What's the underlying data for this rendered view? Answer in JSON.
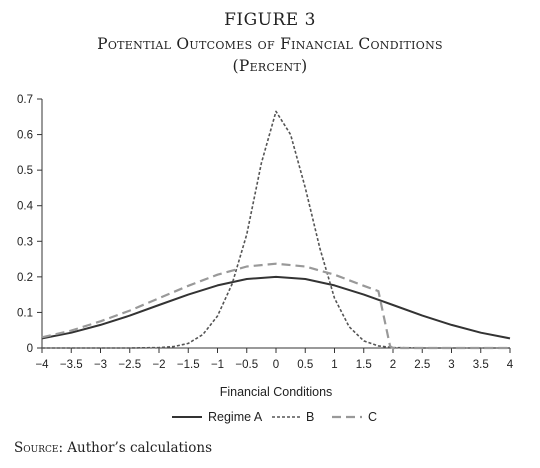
{
  "figure": {
    "label": "FIGURE 3",
    "title": "Potential Outcomes of Financial Conditions",
    "subtitle": "(Percent)"
  },
  "source": {
    "prefix": "Source:",
    "text": "Author’s calculations"
  },
  "chart_data": {
    "type": "line",
    "xlabel": "Financial Conditions",
    "ylabel": "",
    "xlim": [
      -4,
      4
    ],
    "ylim": [
      0,
      0.7
    ],
    "x_ticks": [
      "−4",
      "−3.5",
      "−3",
      "−2.5",
      "−2",
      "−1.5",
      "−1",
      "−0.5",
      "0",
      "0.5",
      "1",
      "1.5",
      "2",
      "2.5",
      "3",
      "3.5",
      "4"
    ],
    "x_tick_values": [
      -4,
      -3.5,
      -3,
      -2.5,
      -2,
      -1.5,
      -1,
      -0.5,
      0,
      0.5,
      1,
      1.5,
      2,
      2.5,
      3,
      3.5,
      4
    ],
    "y_ticks": [
      "0",
      "0.1",
      "0.2",
      "0.3",
      "0.4",
      "0.5",
      "0.6",
      "0.7"
    ],
    "y_tick_values": [
      0,
      0.1,
      0.2,
      0.3,
      0.4,
      0.5,
      0.6,
      0.7
    ],
    "grid": false,
    "legend_position": "bottom-center",
    "series": [
      {
        "name": "Regime A",
        "style": "solid",
        "color": "#333333",
        "x": [
          -4,
          -3.5,
          -3,
          -2.5,
          -2,
          -1.5,
          -1,
          -0.5,
          0,
          0.5,
          1,
          1.5,
          2,
          2.5,
          3,
          3.5,
          4
        ],
        "y": [
          0.027,
          0.043,
          0.065,
          0.091,
          0.121,
          0.15,
          0.176,
          0.194,
          0.2,
          0.194,
          0.176,
          0.15,
          0.121,
          0.091,
          0.065,
          0.043,
          0.027
        ]
      },
      {
        "name": "B",
        "style": "dotted",
        "color": "#555555",
        "x": [
          -4,
          -3,
          -2.5,
          -2,
          -1.75,
          -1.5,
          -1.25,
          -1,
          -0.75,
          -0.5,
          -0.25,
          0,
          0.25,
          0.5,
          0.75,
          1,
          1.25,
          1.5,
          1.75,
          2,
          2.5,
          3,
          4
        ],
        "y": [
          0,
          0,
          0,
          0.001,
          0.004,
          0.013,
          0.038,
          0.09,
          0.18,
          0.32,
          0.52,
          0.665,
          0.6,
          0.45,
          0.28,
          0.14,
          0.06,
          0.02,
          0.006,
          0.001,
          0,
          0,
          0
        ]
      },
      {
        "name": "C",
        "style": "dashed",
        "color": "#999999",
        "x": [
          -4,
          -3.5,
          -3,
          -2.5,
          -2,
          -1.5,
          -1,
          -0.5,
          0,
          0.5,
          1,
          1.5,
          1.75,
          1.95,
          2,
          2.5,
          3,
          4
        ],
        "y": [
          0.03,
          0.049,
          0.075,
          0.105,
          0.14,
          0.175,
          0.206,
          0.229,
          0.237,
          0.229,
          0.206,
          0.175,
          0.16,
          0.005,
          0,
          0,
          0,
          0
        ]
      }
    ]
  }
}
